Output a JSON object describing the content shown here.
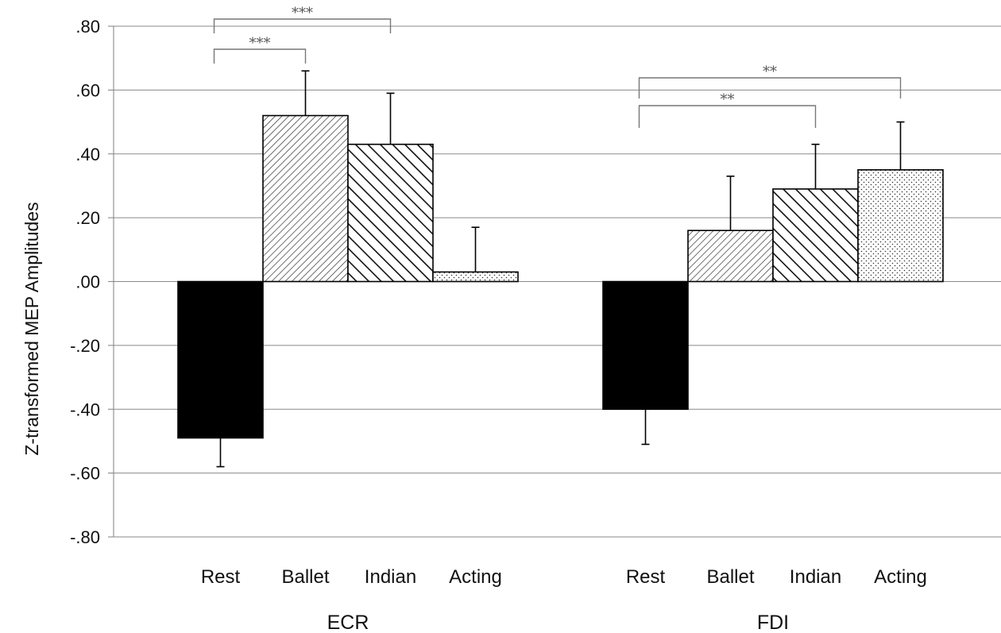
{
  "chart_data": {
    "type": "bar",
    "ylabel": "Z-transformed MEP Amplitudes",
    "ylim": [
      -0.8,
      0.8
    ],
    "yticks": [
      {
        "value": 0.8,
        "label": ".80"
      },
      {
        "value": 0.6,
        "label": ".60"
      },
      {
        "value": 0.4,
        "label": ".40"
      },
      {
        "value": 0.2,
        "label": ".20"
      },
      {
        "value": 0.0,
        "label": ".00"
      },
      {
        "value": -0.2,
        "label": "-.20"
      },
      {
        "value": -0.4,
        "label": "-.40"
      },
      {
        "value": -0.6,
        "label": "-.60"
      },
      {
        "value": -0.8,
        "label": "-.80"
      }
    ],
    "grid": true,
    "categories": [
      "Rest",
      "Ballet",
      "Indian",
      "Acting"
    ],
    "groups": [
      {
        "name": "ECR",
        "values": [
          -0.49,
          0.52,
          0.43,
          0.03
        ],
        "errors": [
          0.09,
          0.14,
          0.16,
          0.14
        ]
      },
      {
        "name": "FDI",
        "values": [
          -0.4,
          0.16,
          0.29,
          0.35
        ],
        "errors": [
          0.11,
          0.17,
          0.14,
          0.15
        ]
      }
    ],
    "patterns": {
      "Rest": "solid-black",
      "Ballet": "fine-diagonal",
      "Indian": "wide-diagonal",
      "Acting": "dots"
    },
    "significance": [
      {
        "group": "ECR",
        "from": "Rest",
        "to": "Indian",
        "label": "***"
      },
      {
        "group": "ECR",
        "from": "Rest",
        "to": "Ballet",
        "label": "***"
      },
      {
        "group": "FDI",
        "from": "Rest",
        "to": "Acting",
        "label": "**"
      },
      {
        "group": "FDI",
        "from": "Rest",
        "to": "Indian",
        "label": "**"
      }
    ]
  }
}
